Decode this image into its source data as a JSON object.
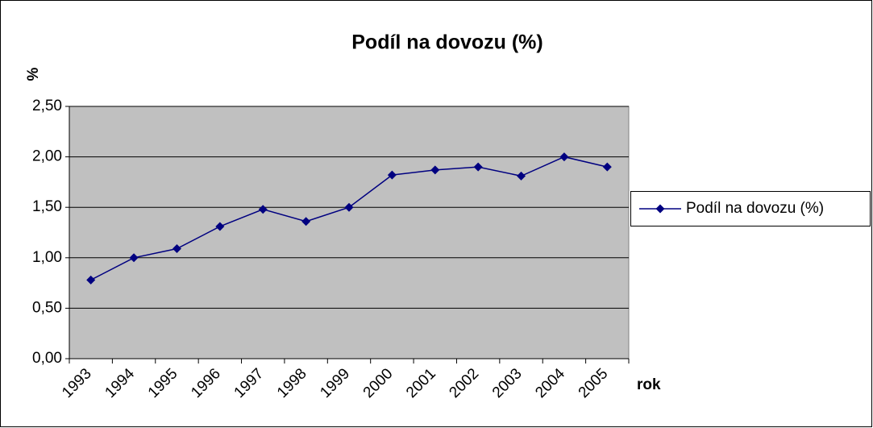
{
  "chart_data": {
    "type": "line",
    "title": "Podíl na dovozu (%)",
    "y_label": "%",
    "x_label": "rok",
    "categories": [
      "1993",
      "1994",
      "1995",
      "1996",
      "1997",
      "1998",
      "1999",
      "2000",
      "2001",
      "2002",
      "2003",
      "2004",
      "2005"
    ],
    "series": [
      {
        "name": "Podíl na dovozu (%)",
        "color": "#000080",
        "values": [
          0.78,
          1.0,
          1.09,
          1.31,
          1.48,
          1.36,
          1.5,
          1.82,
          1.87,
          1.9,
          1.81,
          2.0,
          1.9
        ]
      }
    ],
    "ylim": [
      0,
      2.5
    ],
    "yticks": [
      {
        "value": 0,
        "label": "0,00"
      },
      {
        "value": 0.5,
        "label": "0,50"
      },
      {
        "value": 1,
        "label": "1,00"
      },
      {
        "value": 1.5,
        "label": "1,50"
      },
      {
        "value": 2,
        "label": "2,00"
      },
      {
        "value": 2.5,
        "label": "2,50"
      }
    ],
    "grid": true,
    "legend": "right",
    "plot_background": "#c0c0c0"
  }
}
